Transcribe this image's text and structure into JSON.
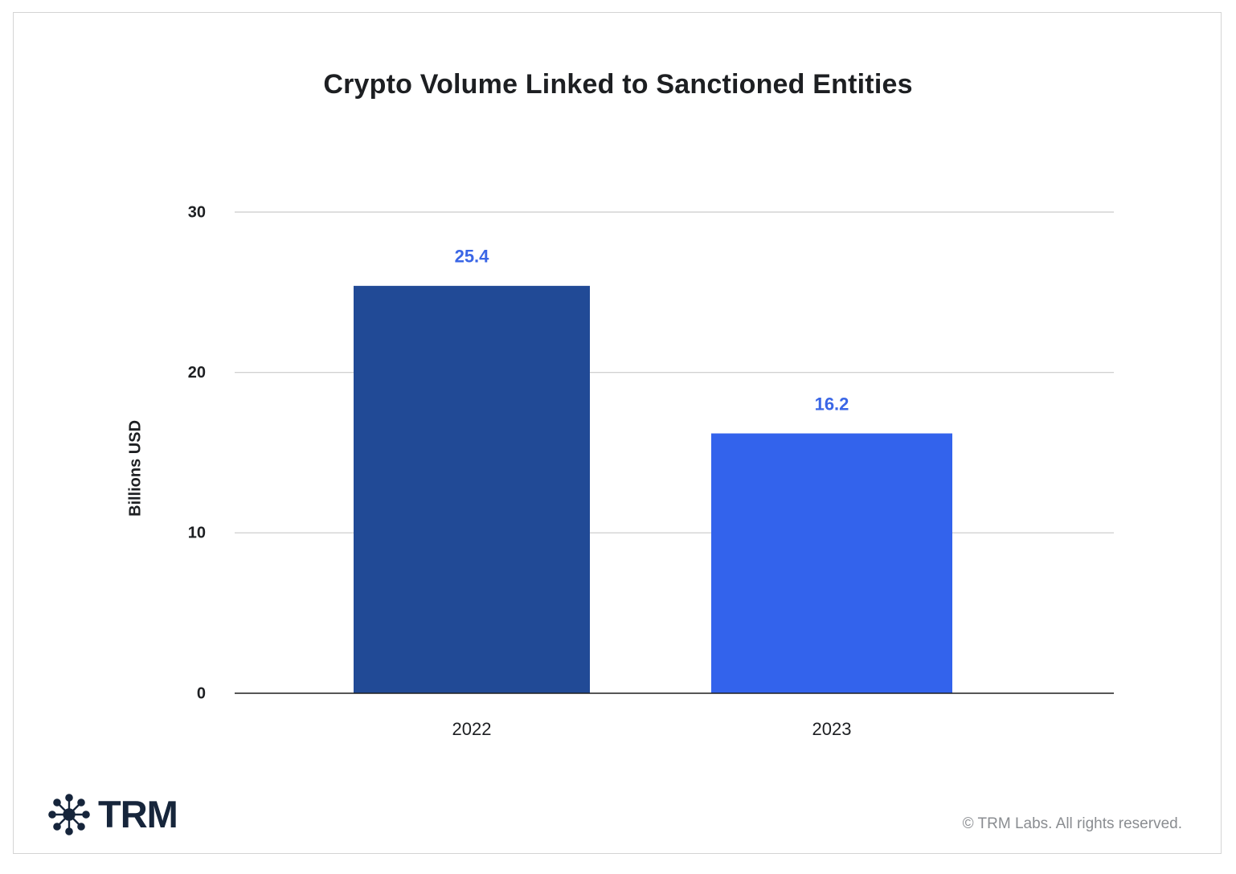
{
  "chart_data": {
    "type": "bar",
    "title": "Crypto Volume Linked to Sanctioned Entities",
    "xlabel": "",
    "ylabel": "Billions USD",
    "categories": [
      "2022",
      "2023"
    ],
    "values": [
      25.4,
      16.2
    ],
    "data_labels": [
      "25.4",
      "16.2"
    ],
    "bar_colors": [
      "#214a96",
      "#3363ec"
    ],
    "label_color": "#3a66e6",
    "ylim": [
      0,
      30
    ],
    "yticks": [
      0,
      10,
      20,
      30
    ],
    "ytick_labels": [
      "0",
      "10",
      "20",
      "30"
    ],
    "grid": true
  },
  "branding": {
    "logo_text": "TRM",
    "logo_icon": "network-node-icon",
    "copyright": "© TRM Labs. All rights reserved."
  },
  "colors": {
    "gridline": "#c9c9c9",
    "baseline": "#1f1f1f",
    "logo": "#16253b"
  }
}
